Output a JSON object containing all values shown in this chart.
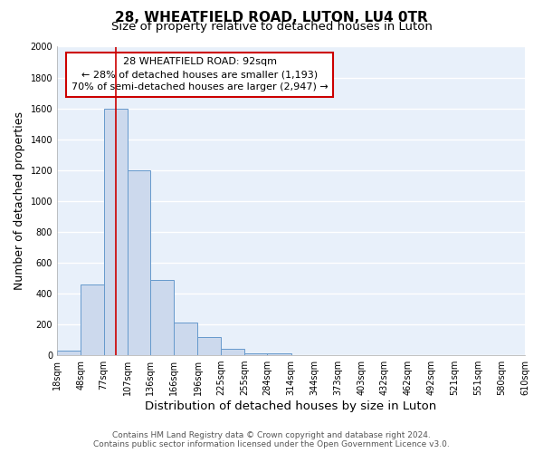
{
  "title": "28, WHEATFIELD ROAD, LUTON, LU4 0TR",
  "subtitle": "Size of property relative to detached houses in Luton",
  "xlabel": "Distribution of detached houses by size in Luton",
  "ylabel": "Number of detached properties",
  "bin_edges": [
    18,
    48,
    77,
    107,
    136,
    166,
    196,
    225,
    255,
    284,
    314,
    344,
    373,
    403,
    432,
    462,
    492,
    521,
    551,
    580,
    610
  ],
  "bin_counts": [
    30,
    460,
    1600,
    1200,
    490,
    210,
    120,
    40,
    15,
    10,
    0,
    0,
    0,
    0,
    0,
    0,
    0,
    0,
    0,
    0
  ],
  "bar_facecolor": "#ccd9ed",
  "bar_edgecolor": "#6699cc",
  "property_size": 92,
  "vline_color": "#cc0000",
  "annotation_line1": "28 WHEATFIELD ROAD: 92sqm",
  "annotation_line2": "← 28% of detached houses are smaller (1,193)",
  "annotation_line3": "70% of semi-detached houses are larger (2,947) →",
  "annotation_box_edgecolor": "#cc0000",
  "annotation_box_facecolor": "#ffffff",
  "ylim": [
    0,
    2000
  ],
  "yticks": [
    0,
    200,
    400,
    600,
    800,
    1000,
    1200,
    1400,
    1600,
    1800,
    2000
  ],
  "tick_labels": [
    "18sqm",
    "48sqm",
    "77sqm",
    "107sqm",
    "136sqm",
    "166sqm",
    "196sqm",
    "225sqm",
    "255sqm",
    "284sqm",
    "314sqm",
    "344sqm",
    "373sqm",
    "403sqm",
    "432sqm",
    "462sqm",
    "492sqm",
    "521sqm",
    "551sqm",
    "580sqm",
    "610sqm"
  ],
  "footer_text": "Contains HM Land Registry data © Crown copyright and database right 2024.\nContains public sector information licensed under the Open Government Licence v3.0.",
  "fig_bg_color": "#ffffff",
  "plot_bg_color": "#e8f0fa",
  "grid_color": "#ffffff",
  "title_fontsize": 11,
  "subtitle_fontsize": 9.5,
  "axis_label_fontsize": 9,
  "tick_fontsize": 7,
  "footer_fontsize": 6.5,
  "annotation_fontsize": 8
}
